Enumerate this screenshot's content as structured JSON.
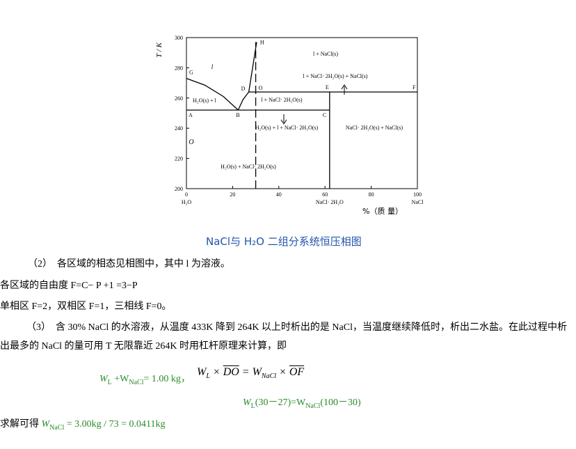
{
  "figure": {
    "y_label": "T / K",
    "x_label": "%（质 量）",
    "xlim": [
      0,
      100
    ],
    "ylim": [
      200,
      300
    ],
    "xticks": [
      0,
      20,
      40,
      60,
      80,
      100
    ],
    "yticks": [
      200,
      220,
      240,
      260,
      280,
      300
    ],
    "x_end_labels": [
      "H₂O",
      "NaCl· 2H₂O",
      "NaCl"
    ],
    "x_end_positions": [
      0,
      62,
      100
    ],
    "boundaries": [
      {
        "x": [
          0,
          8,
          16,
          22.4
        ],
        "T": [
          273,
          268.5,
          261,
          252
        ]
      },
      {
        "x": [
          22.4,
          24.5,
          27
        ],
        "T": [
          252,
          259,
          264
        ]
      },
      {
        "x": [
          27,
          30.4
        ],
        "T": [
          264,
          297
        ]
      },
      {
        "x": [
          27,
          100
        ],
        "T": [
          264,
          264
        ]
      },
      {
        "x": [
          0,
          62
        ],
        "T": [
          252,
          252
        ]
      },
      {
        "x": [
          62,
          62
        ],
        "T": [
          264,
          200
        ]
      }
    ],
    "dashed": {
      "x": [
        30,
        30
      ],
      "T": [
        200,
        297
      ]
    },
    "points": [
      {
        "label": "G",
        "x": 0,
        "T": 273
      },
      {
        "label": "A",
        "x": 0,
        "T": 252
      },
      {
        "label": "B",
        "x": 22.4,
        "T": 252
      },
      {
        "label": "C",
        "x": 62,
        "T": 252
      },
      {
        "label": "D",
        "x": 27,
        "T": 264
      },
      {
        "label": "O",
        "x": 30,
        "T": 264
      },
      {
        "label": "E",
        "x": 62,
        "T": 264
      },
      {
        "label": "F",
        "x": 100,
        "T": 264
      },
      {
        "label": "H",
        "x": 30.4,
        "T": 297
      }
    ],
    "regions": [
      "l",
      "l + NaCl(s)",
      "l + NaCl· 2H₂O(s) + NaCl(s)",
      "H₂O(s) + l",
      "l + NaCl· 2H₂O(s)",
      "H₂O(s) + l + NaCl· 2H₂O(s)",
      "NaCl· 2H₂O(s) + NaCl(s)",
      "H₂O(s) + NaCl· 2H₂O(s)",
      "O"
    ]
  },
  "caption": "NaCl与 H₂O 二组分系统恒压相图",
  "paragraphs": [
    "（2）　各区域的相态见相图中，其中 l 为溶液。",
    "各区域的自由度 F=C− P +1 =3−P",
    "单相区 F=2，双相区 F=1，三相线 F=0。",
    "（3）　含 30% NaCl 的水溶液，从温度 433K 降到 264K 以上时析出的是 NaCl，当温度继续降低时，析出二水盐。在此过程中析出最多的 NaCl 的量可用 T 无限靠近 264K 时用杠杆原理来计算，即"
  ],
  "equations": {
    "eq1": [
      "W",
      "L",
      " +W",
      "NaCl",
      "= 1.00 kg，"
    ],
    "eq2": [
      "W",
      "L",
      " × ",
      "DO",
      " = W",
      "NaCl",
      " × ",
      "OF"
    ],
    "eq3": [
      "W",
      "L",
      "(30－27)=W",
      "NaCl",
      "(100－30)"
    ],
    "result": [
      "求解可得 ",
      "W",
      "NaCl",
      " = 3.00kg / 73 =  0.0411kg"
    ]
  }
}
